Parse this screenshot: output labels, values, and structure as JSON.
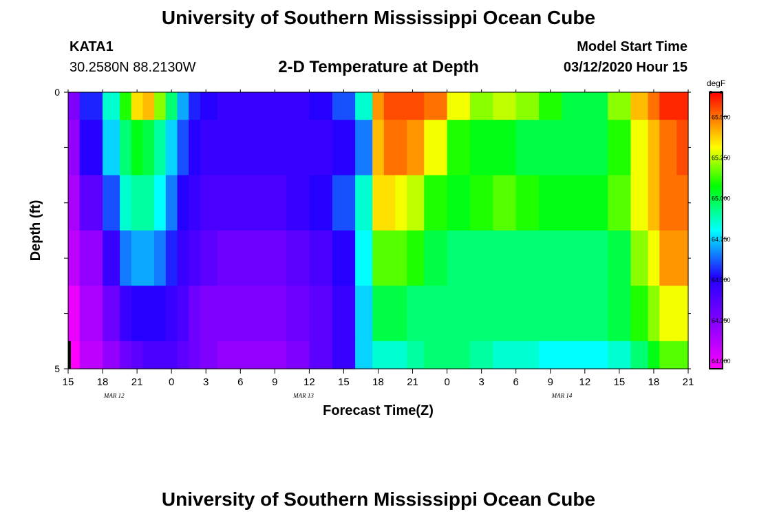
{
  "page": {
    "title_top": "University of Southern Mississippi Ocean Cube",
    "title_bottom": "University of Southern Mississippi Ocean Cube",
    "station_id": "KATA1",
    "coordinates": "30.2580N 88.2130W",
    "subtitle": "2-D Temperature at Depth",
    "model_start_label": "Model Start Time",
    "model_start_value": "03/12/2020 Hour 15"
  },
  "chart_data": {
    "type": "heatmap",
    "title": "2-D Temperature at Depth",
    "xlabel": "Forecast Time(Z)",
    "ylabel": "Depth (ft)",
    "y_tick_labels": [
      "0",
      "5"
    ],
    "y_range": [
      0,
      5
    ],
    "x_tick_labels": [
      "15",
      "18",
      "21",
      "0",
      "3",
      "6",
      "9",
      "12",
      "15",
      "18",
      "21",
      "0",
      "3",
      "6",
      "9",
      "12",
      "15",
      "18",
      "21"
    ],
    "x_hours": [
      0,
      54
    ],
    "date_labels": [
      {
        "text": "MAR 12",
        "hour": 4
      },
      {
        "text": "MAR 13",
        "hour": 20.5
      },
      {
        "text": "MAR 14",
        "hour": 43
      }
    ],
    "colorbar": {
      "unit": "degF",
      "min": 63.95,
      "max": 65.65,
      "ticks": [
        "64.000",
        "64.250",
        "64.500",
        "64.750",
        "65.000",
        "65.250",
        "65.500"
      ],
      "tick_values": [
        64.0,
        64.25,
        64.5,
        64.75,
        65.0,
        65.25,
        65.5
      ]
    },
    "depth_layers": [
      "0-0.5 ft",
      "0.5-1.5 ft",
      "1.5-2.5 ft",
      "2.5-3.5 ft",
      "3.5-4.5 ft",
      "4.5-5 ft"
    ],
    "time_hours": [
      0,
      2,
      4,
      5,
      6,
      7,
      8,
      9,
      10,
      11,
      12,
      14,
      16,
      18,
      20,
      22,
      24,
      26,
      27,
      28,
      29,
      30,
      32,
      34,
      36,
      38,
      40,
      42,
      44,
      46,
      48,
      50,
      51,
      52,
      54
    ],
    "temperature_degF": [
      [
        64.25,
        64.55,
        64.85,
        65.1,
        65.35,
        65.4,
        65.2,
        64.95,
        64.7,
        64.55,
        64.5,
        64.45,
        64.45,
        64.45,
        64.45,
        64.5,
        64.6,
        64.85,
        65.45,
        65.55,
        65.55,
        65.55,
        65.5,
        65.3,
        65.2,
        65.25,
        65.2,
        65.1,
        65.0,
        65.0,
        65.2,
        65.4,
        65.5,
        65.6,
        65.6
      ],
      [
        64.2,
        64.5,
        64.75,
        64.95,
        65.05,
        65.0,
        64.9,
        64.75,
        64.6,
        64.5,
        64.45,
        64.45,
        64.45,
        64.45,
        64.45,
        64.45,
        64.5,
        64.65,
        65.4,
        65.5,
        65.5,
        65.45,
        65.3,
        65.1,
        65.05,
        65.05,
        65.0,
        65.0,
        65.0,
        65.0,
        65.1,
        65.3,
        65.4,
        65.5,
        65.55
      ],
      [
        64.15,
        64.35,
        64.6,
        64.85,
        64.9,
        64.9,
        64.8,
        64.65,
        64.5,
        64.45,
        64.4,
        64.4,
        64.4,
        64.4,
        64.45,
        64.5,
        64.6,
        64.85,
        65.35,
        65.35,
        65.3,
        65.25,
        65.1,
        65.05,
        65.1,
        65.15,
        65.1,
        65.05,
        65.05,
        65.05,
        65.15,
        65.3,
        65.4,
        65.5,
        65.5
      ],
      [
        64.1,
        64.2,
        64.45,
        64.65,
        64.7,
        64.7,
        64.65,
        64.55,
        64.45,
        64.4,
        64.35,
        64.3,
        64.3,
        64.3,
        64.35,
        64.4,
        64.5,
        64.8,
        65.15,
        65.15,
        65.15,
        65.1,
        65.0,
        64.95,
        64.95,
        64.95,
        64.95,
        64.95,
        64.95,
        64.95,
        65.0,
        65.2,
        65.3,
        65.45,
        65.45
      ],
      [
        64.0,
        64.15,
        64.3,
        64.45,
        64.5,
        64.5,
        64.5,
        64.45,
        64.4,
        64.3,
        64.25,
        64.25,
        64.25,
        64.25,
        64.3,
        64.35,
        64.45,
        64.75,
        65.0,
        65.0,
        65.0,
        64.95,
        64.95,
        64.95,
        64.95,
        64.95,
        64.95,
        64.95,
        64.95,
        64.95,
        65.0,
        65.1,
        65.2,
        65.3,
        65.3
      ],
      [
        63.95,
        64.1,
        64.2,
        64.3,
        64.35,
        64.4,
        64.4,
        64.4,
        64.35,
        64.3,
        64.25,
        64.2,
        64.2,
        64.2,
        64.25,
        64.35,
        64.45,
        64.75,
        64.85,
        64.85,
        64.85,
        64.9,
        64.95,
        64.95,
        64.9,
        64.85,
        64.85,
        64.8,
        64.8,
        64.8,
        64.85,
        64.95,
        65.05,
        65.15,
        65.15
      ]
    ]
  }
}
